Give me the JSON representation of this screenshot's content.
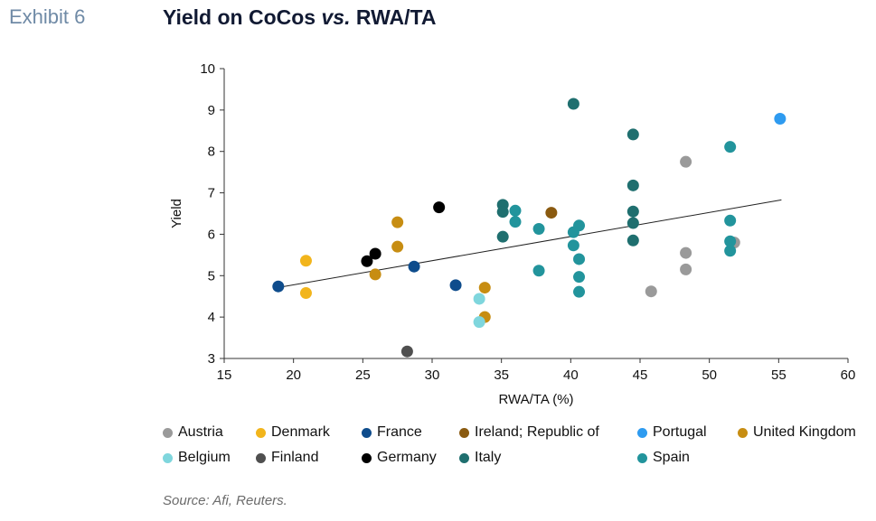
{
  "header": {
    "exhibit": "Exhibit 6",
    "title_a": "Yield on CoCos ",
    "title_vs": "vs.",
    "title_b": " RWA/TA"
  },
  "source": "Source: Afi, Reuters.",
  "chart_data": {
    "type": "scatter",
    "xlabel": "RWA/TA (%)",
    "ylabel": "Yield",
    "xlim": [
      15,
      60
    ],
    "ylim": [
      3,
      10
    ],
    "xticks": [
      15,
      20,
      25,
      30,
      35,
      40,
      45,
      50,
      55,
      60
    ],
    "yticks": [
      3,
      4,
      5,
      6,
      7,
      8,
      9,
      10
    ],
    "grid": false,
    "legend_position": "bottom",
    "trendline": {
      "x": [
        19,
        55.2
      ],
      "y": [
        4.72,
        6.83
      ]
    },
    "series": [
      {
        "name": "Austria",
        "color": "#9a9a9a",
        "points": [
          [
            48.3,
            7.75
          ],
          [
            48.3,
            5.55
          ],
          [
            48.3,
            5.15
          ],
          [
            45.8,
            4.62
          ],
          [
            51.8,
            5.8
          ]
        ]
      },
      {
        "name": "Denmark",
        "color": "#f2b51c",
        "points": [
          [
            20.9,
            5.36
          ],
          [
            20.9,
            4.58
          ]
        ]
      },
      {
        "name": "France",
        "color": "#0e4c8c",
        "points": [
          [
            18.9,
            4.74
          ],
          [
            28.7,
            5.22
          ],
          [
            31.7,
            4.77
          ]
        ]
      },
      {
        "name": "Ireland; Republic of",
        "color": "#8a5a10",
        "points": [
          [
            38.6,
            6.52
          ]
        ]
      },
      {
        "name": "Portugal",
        "color": "#2e9bf0",
        "points": [
          [
            55.1,
            8.79
          ]
        ]
      },
      {
        "name": "United Kingdom",
        "color": "#c78d12",
        "points": [
          [
            27.5,
            6.29
          ],
          [
            27.5,
            5.7
          ],
          [
            25.9,
            5.03
          ],
          [
            33.8,
            4.71
          ],
          [
            33.8,
            4.0
          ]
        ]
      },
      {
        "name": "Belgium",
        "color": "#7fd6dd",
        "points": [
          [
            33.4,
            4.44
          ],
          [
            33.4,
            3.88
          ]
        ]
      },
      {
        "name": "Finland",
        "color": "#4f4f4f",
        "points": [
          [
            28.2,
            3.17
          ]
        ]
      },
      {
        "name": "Germany",
        "color": "#000000",
        "points": [
          [
            30.5,
            6.65
          ],
          [
            25.9,
            5.53
          ],
          [
            25.3,
            5.35
          ]
        ]
      },
      {
        "name": "Italy",
        "color": "#1f6f6f",
        "points": [
          [
            40.2,
            9.15
          ],
          [
            44.5,
            8.41
          ],
          [
            44.5,
            7.18
          ],
          [
            44.5,
            6.55
          ],
          [
            44.5,
            6.27
          ],
          [
            44.5,
            5.85
          ],
          [
            35.1,
            6.71
          ],
          [
            35.1,
            6.54
          ],
          [
            35.1,
            5.94
          ]
        ]
      },
      {
        "name": "Spain",
        "color": "#22949c",
        "points": [
          [
            51.5,
            8.11
          ],
          [
            51.5,
            6.33
          ],
          [
            51.5,
            5.83
          ],
          [
            51.5,
            5.6
          ],
          [
            36.0,
            6.57
          ],
          [
            36.0,
            6.3
          ],
          [
            37.7,
            6.13
          ],
          [
            37.7,
            5.12
          ],
          [
            40.6,
            6.21
          ],
          [
            40.2,
            6.05
          ],
          [
            40.2,
            5.73
          ],
          [
            40.6,
            5.4
          ],
          [
            40.6,
            4.97
          ],
          [
            40.6,
            4.61
          ]
        ]
      }
    ]
  }
}
